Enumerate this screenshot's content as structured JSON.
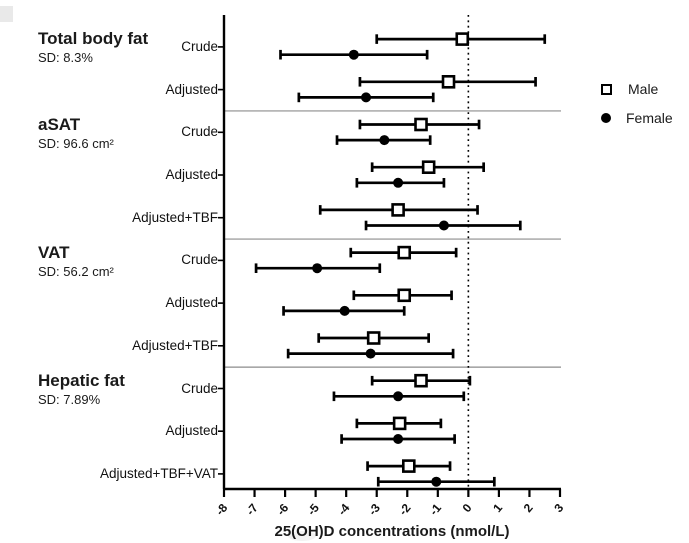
{
  "chart_data": {
    "type": "forest",
    "xlabel": "25(OH)D concentrations (nmol/L)",
    "xlim": [
      -8,
      3
    ],
    "x_ticks": [
      -8,
      -7,
      -6,
      -5,
      -4,
      -3,
      -2,
      -1,
      0,
      1,
      2,
      3
    ],
    "zero_reference_line": 0,
    "grid": false,
    "legend_position": "right",
    "legend": [
      {
        "label": "Male",
        "marker": "open-square"
      },
      {
        "label": "Female",
        "marker": "filled-circle"
      }
    ],
    "groups": [
      {
        "name": "Total body fat",
        "sd": "SD: 8.3%",
        "rows": [
          {
            "label": "Crude",
            "male": {
              "value": -0.2,
              "ci": [
                -3.0,
                2.5
              ]
            },
            "female": {
              "value": -3.75,
              "ci": [
                -6.15,
                -1.35
              ]
            }
          },
          {
            "label": "Adjusted",
            "male": {
              "value": -0.65,
              "ci": [
                -3.55,
                2.2
              ]
            },
            "female": {
              "value": -3.35,
              "ci": [
                -5.55,
                -1.15
              ]
            }
          }
        ]
      },
      {
        "name": "aSAT",
        "sd": "SD: 96.6 cm²",
        "rows": [
          {
            "label": "Crude",
            "male": {
              "value": -1.55,
              "ci": [
                -3.55,
                0.35
              ]
            },
            "female": {
              "value": -2.75,
              "ci": [
                -4.3,
                -1.25
              ]
            }
          },
          {
            "label": "Adjusted",
            "male": {
              "value": -1.3,
              "ci": [
                -3.15,
                0.5
              ]
            },
            "female": {
              "value": -2.3,
              "ci": [
                -3.65,
                -0.8
              ]
            }
          },
          {
            "label": "Adjusted+TBF",
            "male": {
              "value": -2.3,
              "ci": [
                -4.85,
                0.3
              ]
            },
            "female": {
              "value": -0.8,
              "ci": [
                -3.35,
                1.7
              ]
            }
          }
        ]
      },
      {
        "name": "VAT",
        "sd": "SD: 56.2 cm²",
        "rows": [
          {
            "label": "Crude",
            "male": {
              "value": -2.1,
              "ci": [
                -3.85,
                -0.4
              ]
            },
            "female": {
              "value": -4.95,
              "ci": [
                -6.95,
                -2.9
              ]
            }
          },
          {
            "label": "Adjusted",
            "male": {
              "value": -2.1,
              "ci": [
                -3.75,
                -0.55
              ]
            },
            "female": {
              "value": -4.05,
              "ci": [
                -6.05,
                -2.1
              ]
            }
          },
          {
            "label": "Adjusted+TBF",
            "male": {
              "value": -3.1,
              "ci": [
                -4.9,
                -1.3
              ]
            },
            "female": {
              "value": -3.2,
              "ci": [
                -5.9,
                -0.5
              ]
            }
          }
        ]
      },
      {
        "name": "Hepatic fat",
        "sd": "SD: 7.89%",
        "rows": [
          {
            "label": "Crude",
            "male": {
              "value": -1.55,
              "ci": [
                -3.15,
                0.05
              ]
            },
            "female": {
              "value": -2.3,
              "ci": [
                -4.4,
                -0.15
              ]
            }
          },
          {
            "label": "Adjusted",
            "male": {
              "value": -2.25,
              "ci": [
                -3.65,
                -0.9
              ]
            },
            "female": {
              "value": -2.3,
              "ci": [
                -4.15,
                -0.45
              ]
            }
          },
          {
            "label": "Adjusted+TBF+VAT",
            "male": {
              "value": -1.95,
              "ci": [
                -3.3,
                -0.6
              ]
            },
            "female": {
              "value": -1.05,
              "ci": [
                -2.95,
                0.85
              ]
            }
          }
        ]
      }
    ],
    "colors": {
      "data": "#000000",
      "divider": "#8c8c8c",
      "background": "#ffffff"
    }
  }
}
